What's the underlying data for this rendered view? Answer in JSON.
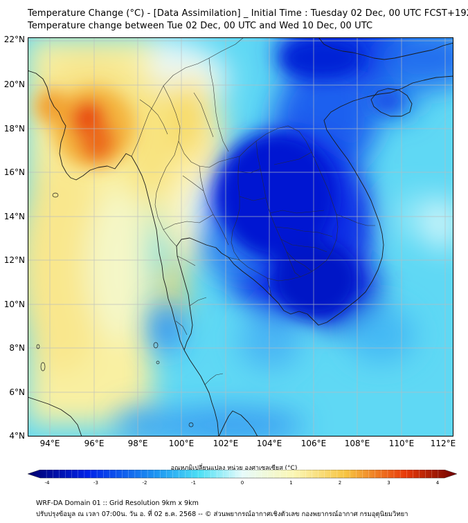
{
  "header": {
    "title_line1": "Temperature Change (°C) - [Data Assimilation] _ Initial Time : Tuesday 02 Dec, 00 UTC FCST+192",
    "title_line2": "Temperature change between Tue 02 Dec, 00 UTC and Wed 10 Dec, 00 UTC"
  },
  "map": {
    "lat_labels": [
      "22°N",
      "20°N",
      "18°N",
      "16°N",
      "14°N",
      "12°N",
      "10°N",
      "8°N",
      "6°N",
      "4°N"
    ],
    "lon_labels": [
      "94°E",
      "96°E",
      "98°E",
      "100°E",
      "102°E",
      "104°E",
      "106°E",
      "108°E",
      "110°E",
      "112°E"
    ],
    "region_shown": "Mainland Southeast Asia: Myanmar, Thailand, Laos, Cambodia, Vietnam, Malay Peninsula, Hainan",
    "anomaly_summary": {
      "warmest": "Myanmar (Bay of Bengal coast, ~19°N 96°E), up to about +3",
      "coldest": "Laos/NE Thailand/Cambodia/southern Vietnam (~16–10°N, 102–106°E), about -3 to -4"
    }
  },
  "colorbar": {
    "title": "อุณหภูมิเปลี่ยนแปลง หน่วย องศาเซลเซียส (°C)",
    "ticks": [
      "-4",
      "-3",
      "-2",
      "-1",
      "0",
      "1",
      "2",
      "3",
      "4"
    ],
    "colors": {
      "cold_extreme": "#00006e",
      "cold": "#0022e8",
      "cool": "#1e96f2",
      "cool_light": "#4ce0f5",
      "neutral": "#e7fbfb",
      "warm_light": "#fbf7b5",
      "warm": "#f7c542",
      "hot": "#e83a0a",
      "hot_extreme": "#6e0000"
    }
  },
  "footer": {
    "line1": "WRF-DA Domain 01 :: Grid Resolution 9km x 9km",
    "line2": "ปรับปรุงข้อมูล ณ เวลา 07:00น. วัน อ. ที่ 02 ธ.ค. 2568 -- © ส่วนพยากรณ์อากาศเชิงตัวเลข กองพยากรณ์อากาศ กรมอุตุนิยมวิทยา"
  }
}
